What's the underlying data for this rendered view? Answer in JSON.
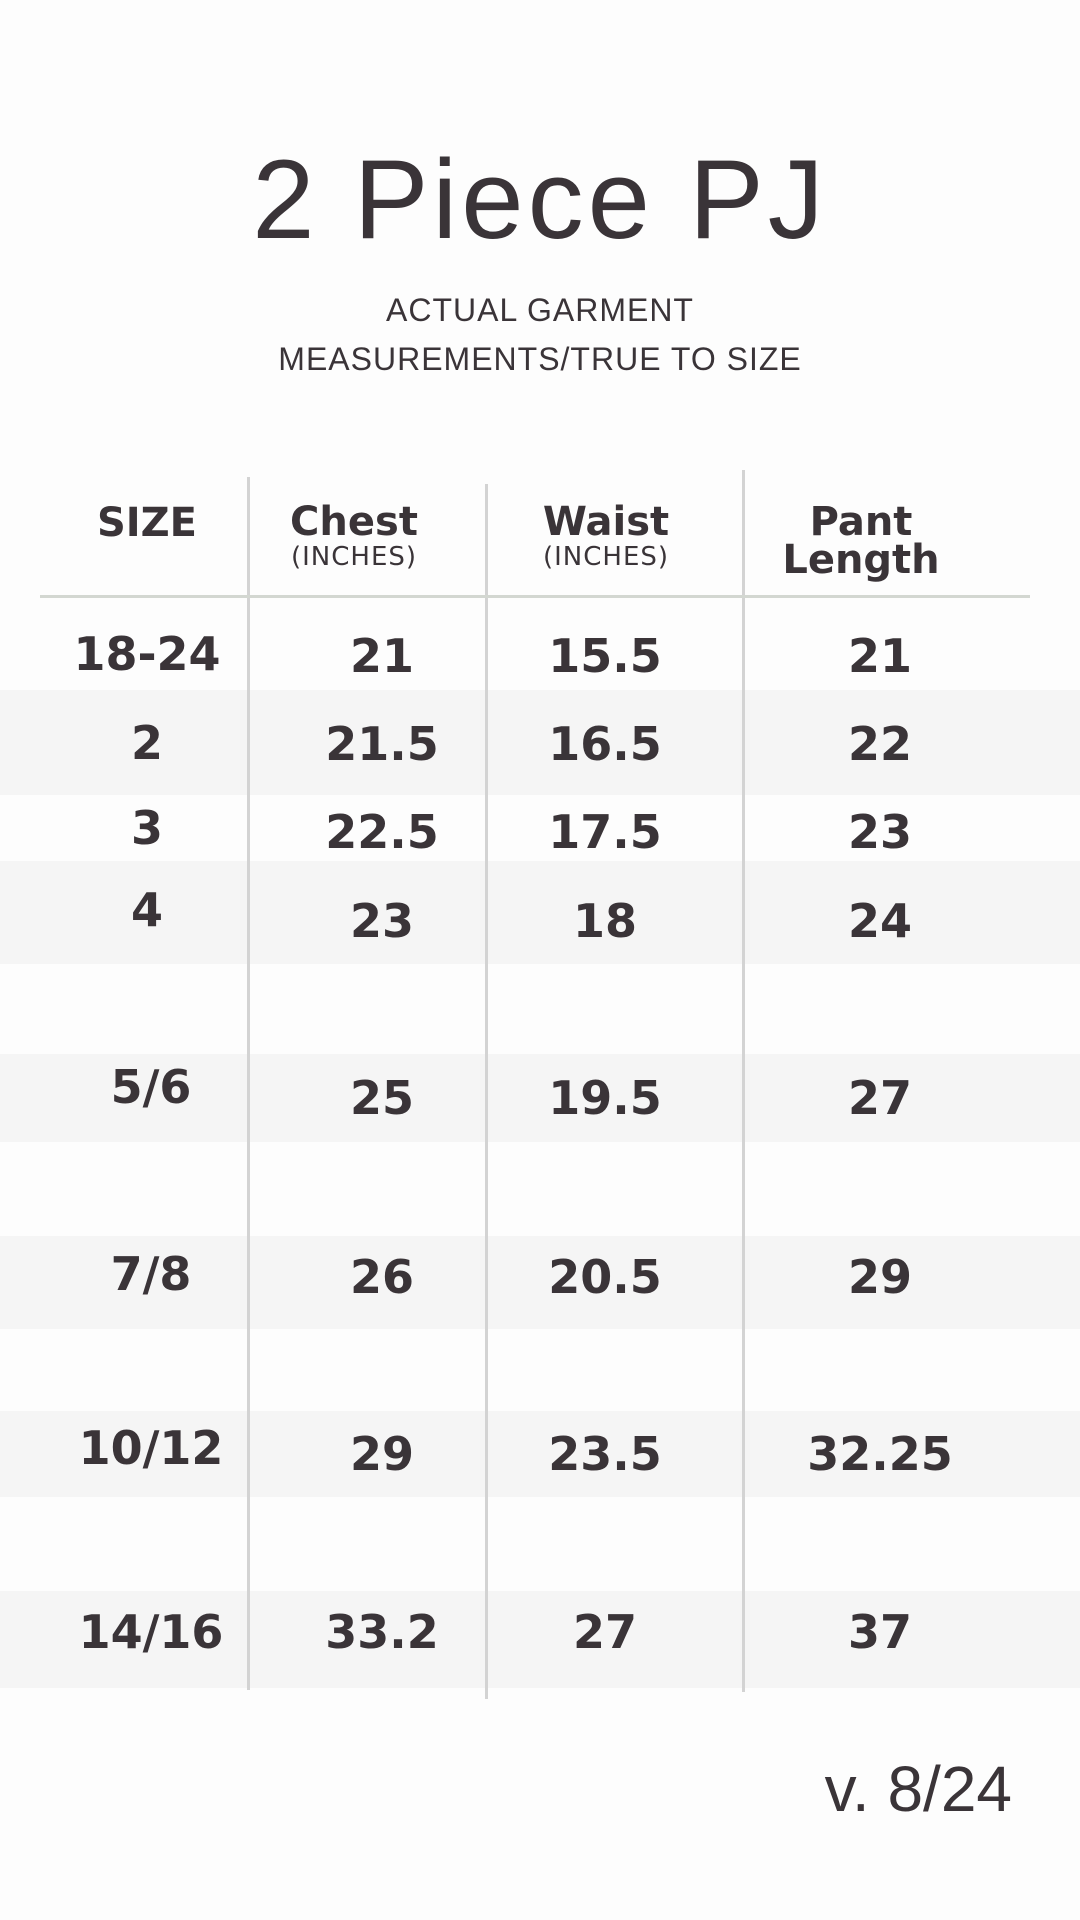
{
  "title": "2 Piece PJ",
  "subtitle": [
    "ACTUAL GARMENT",
    "MEASUREMENTS/TRUE TO SIZE"
  ],
  "table": {
    "headers": [
      {
        "label": "SIZE",
        "unit": ""
      },
      {
        "label": "Chest",
        "unit": "(INCHES)"
      },
      {
        "label": "Waist",
        "unit": "(INCHES)"
      },
      {
        "label": "Pant Length",
        "unit": ""
      }
    ],
    "rows": [
      [
        "18-24",
        "21",
        "15.5",
        "21"
      ],
      [
        "2",
        "21.5",
        "16.5",
        "22"
      ],
      [
        "3",
        "22.5",
        "17.5",
        "23"
      ],
      [
        "4",
        "23",
        "18",
        "24"
      ],
      [
        "5/6",
        "25",
        "19.5",
        "27"
      ],
      [
        "7/8",
        "26",
        "20.5",
        "29"
      ],
      [
        "10/12",
        "29",
        "23.5",
        "32.25"
      ],
      [
        "14/16",
        "33.2",
        "27",
        "37"
      ]
    ]
  },
  "version": "v. 8/24",
  "colors": {
    "text": "#3a3438",
    "band": "#f5f5f5",
    "rule": "#d3d3d3"
  }
}
